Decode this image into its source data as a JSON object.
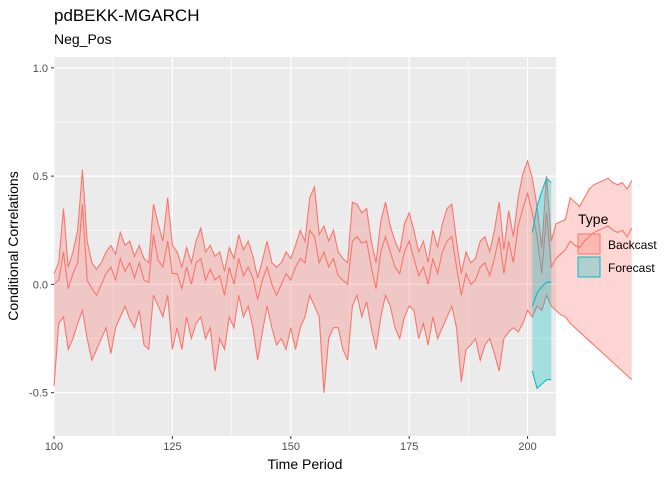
{
  "chart_data": {
    "type": "area",
    "title": "pdBEKK-MGARCH",
    "subtitle": "Neg_Pos",
    "xlabel": "Time Period",
    "ylabel": "Conditional Correlations",
    "xlim": [
      100,
      206
    ],
    "ylim": [
      -0.7,
      1.05
    ],
    "x_ticks": [
      100,
      125,
      150,
      175,
      200
    ],
    "x_tick_labels": [
      "100",
      "125",
      "150",
      "175",
      "200"
    ],
    "y_ticks": [
      -0.5,
      0.0,
      0.5,
      1.0
    ],
    "y_tick_labels": [
      "-0.5",
      "0.0",
      "0.5",
      "1.0"
    ],
    "grid": true,
    "legend": {
      "title": "Type",
      "position": "right",
      "entries": [
        "Backcast",
        "Forecast"
      ]
    },
    "colors": {
      "Backcast": "#F8766D",
      "Forecast": "#00BFC4",
      "panel": "#EBEBEB",
      "grid": "#FFFFFF"
    },
    "series": [
      {
        "name": "Backcast",
        "x_start": 100,
        "upper": [
          0.05,
          0.1,
          0.35,
          0.08,
          0.15,
          0.25,
          0.53,
          0.2,
          0.1,
          0.07,
          0.1,
          0.15,
          0.18,
          0.14,
          0.24,
          0.18,
          0.2,
          0.13,
          0.18,
          0.12,
          0.1,
          0.37,
          0.28,
          0.2,
          0.4,
          0.18,
          0.15,
          0.08,
          0.17,
          0.1,
          0.2,
          0.26,
          0.15,
          0.18,
          0.13,
          0.15,
          0.06,
          0.17,
          0.12,
          0.23,
          0.16,
          0.2,
          0.13,
          0.03,
          0.11,
          0.2,
          0.1,
          0.08,
          0.1,
          0.15,
          0.12,
          0.18,
          0.25,
          0.2,
          0.4,
          0.45,
          0.23,
          0.27,
          0.2,
          0.25,
          0.15,
          0.12,
          0.1,
          0.38,
          0.37,
          0.33,
          0.35,
          0.2,
          0.1,
          0.29,
          0.38,
          0.27,
          0.2,
          0.15,
          0.28,
          0.33,
          0.25,
          0.15,
          0.2,
          0.1,
          0.25,
          0.17,
          0.28,
          0.35,
          0.37,
          0.2,
          0.05,
          0.15,
          0.1,
          0.12,
          0.2,
          0.22,
          0.15,
          0.25,
          0.38,
          0.16,
          0.34,
          0.22,
          0.4,
          0.51,
          0.57,
          0.49,
          0.36,
          0.17,
          0.5,
          0.2,
          0.28,
          0.29,
          0.3,
          0.4,
          0.38,
          0.36,
          0.4,
          0.44,
          0.46,
          0.47,
          0.48,
          0.49,
          0.47,
          0.46,
          0.47,
          0.44,
          0.48
        ],
        "middle": [
          0.0,
          0.02,
          0.15,
          -0.02,
          0.05,
          0.1,
          0.37,
          0.02,
          -0.02,
          -0.05,
          0.0,
          0.05,
          0.08,
          0.02,
          0.12,
          0.06,
          0.1,
          0.03,
          0.1,
          0.02,
          0.01,
          0.23,
          0.11,
          0.08,
          0.2,
          0.05,
          0.05,
          -0.02,
          0.08,
          0.0,
          0.1,
          0.12,
          0.02,
          0.07,
          0.02,
          0.04,
          -0.05,
          0.08,
          0.0,
          0.12,
          0.04,
          0.08,
          0.03,
          -0.07,
          0.02,
          0.08,
          0.0,
          -0.05,
          0.0,
          0.05,
          0.02,
          0.08,
          0.12,
          0.1,
          0.25,
          0.22,
          0.1,
          0.15,
          0.08,
          0.12,
          0.04,
          0.02,
          0.0,
          0.2,
          0.22,
          0.19,
          0.2,
          0.08,
          -0.02,
          0.15,
          0.22,
          0.15,
          0.08,
          0.05,
          0.15,
          0.2,
          0.12,
          0.04,
          0.08,
          0.0,
          0.12,
          0.05,
          0.15,
          0.2,
          0.22,
          0.08,
          -0.05,
          0.05,
          0.0,
          0.02,
          0.08,
          0.1,
          0.04,
          0.12,
          0.22,
          0.05,
          0.2,
          0.1,
          0.27,
          0.35,
          0.42,
          0.33,
          0.22,
          0.05,
          0.33,
          0.08,
          0.12,
          0.14,
          0.16,
          0.2,
          0.18,
          0.17,
          0.2,
          0.22,
          0.24,
          0.25,
          0.26,
          0.27,
          0.25,
          0.24,
          0.25,
          0.22,
          0.26
        ],
        "lower": [
          -0.47,
          -0.18,
          -0.15,
          -0.3,
          -0.25,
          -0.18,
          -0.12,
          -0.25,
          -0.35,
          -0.3,
          -0.25,
          -0.2,
          -0.32,
          -0.2,
          -0.15,
          -0.1,
          -0.16,
          -0.2,
          -0.12,
          -0.28,
          -0.3,
          -0.05,
          -0.1,
          -0.15,
          -0.05,
          -0.3,
          -0.2,
          -0.3,
          -0.15,
          -0.25,
          -0.18,
          -0.15,
          -0.25,
          -0.2,
          -0.4,
          -0.25,
          -0.3,
          -0.15,
          -0.2,
          -0.05,
          -0.15,
          -0.1,
          -0.2,
          -0.35,
          -0.22,
          -0.1,
          -0.2,
          -0.28,
          -0.25,
          -0.3,
          -0.2,
          -0.3,
          -0.2,
          -0.15,
          -0.05,
          -0.1,
          -0.15,
          -0.5,
          -0.25,
          -0.2,
          -0.2,
          -0.3,
          -0.35,
          -0.1,
          -0.05,
          -0.15,
          -0.08,
          -0.2,
          -0.3,
          -0.15,
          -0.05,
          -0.1,
          -0.2,
          -0.25,
          -0.15,
          -0.1,
          -0.12,
          -0.25,
          -0.18,
          -0.28,
          -0.15,
          -0.25,
          -0.2,
          -0.15,
          -0.1,
          -0.2,
          -0.45,
          -0.3,
          -0.28,
          -0.25,
          -0.35,
          -0.28,
          -0.25,
          -0.32,
          -0.4,
          -0.25,
          -0.22,
          -0.2,
          -0.22,
          -0.18,
          -0.12,
          -0.15,
          -0.1,
          -0.12,
          -0.05,
          -0.1,
          -0.12,
          -0.14,
          -0.15,
          -0.18,
          -0.2,
          -0.22,
          -0.24,
          -0.26,
          -0.28,
          -0.3,
          -0.32,
          -0.34,
          -0.36,
          -0.38,
          -0.4,
          -0.42,
          -0.44
        ]
      },
      {
        "name": "Forecast",
        "x": [
          201,
          202,
          203,
          204,
          205
        ],
        "upper": [
          0.24,
          0.36,
          0.43,
          0.49,
          0.47
        ],
        "middle": [
          -0.1,
          -0.04,
          -0.01,
          0.01,
          0.01
        ],
        "lower": [
          -0.4,
          -0.48,
          -0.46,
          -0.44,
          -0.44
        ]
      }
    ]
  }
}
